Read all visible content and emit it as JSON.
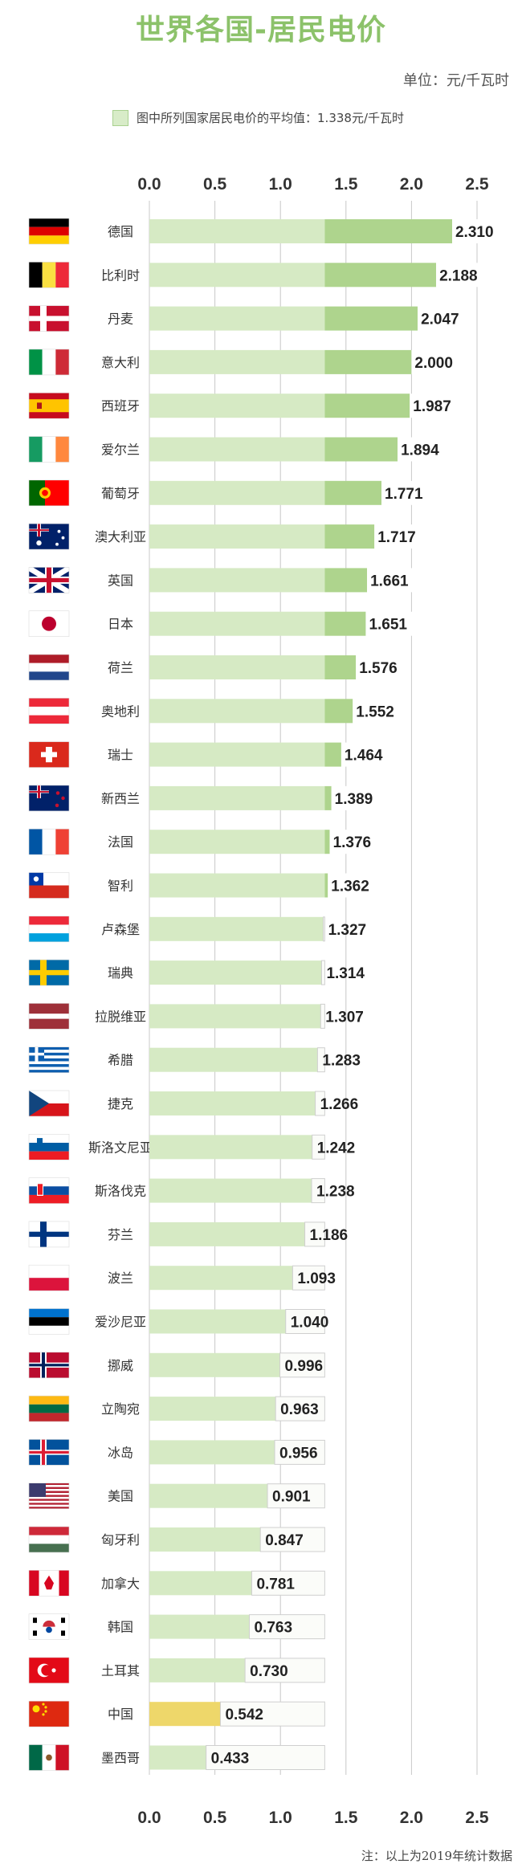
{
  "title": "世界各国-居民电价",
  "unit": "单位：元/千瓦时",
  "legend": "图中所列国家居民电价的平均值：1.338元/千瓦时",
  "note": "注：以上为2019年统计数据",
  "colors": {
    "title": "#8cc26a",
    "bar": "#aed48d",
    "bar_light": "#d6eac4",
    "highlight": "#eed76a",
    "grid": "#c8c8c8",
    "label_box_border": "#cfcfcf"
  },
  "chart_data": {
    "type": "bar",
    "orientation": "horizontal",
    "title": "世界各国-居民电价",
    "xlabel": "",
    "ylabel": "",
    "xlim": [
      0,
      2.5
    ],
    "ticks": [
      "0.0",
      "0.5",
      "1.0",
      "1.5",
      "2.0",
      "2.5"
    ],
    "average": 1.338,
    "grid": true,
    "highlight": "中国",
    "categories": [
      "德国",
      "比利时",
      "丹麦",
      "意大利",
      "西班牙",
      "爱尔兰",
      "葡萄牙",
      "澳大利亚",
      "英国",
      "日本",
      "荷兰",
      "奥地利",
      "瑞士",
      "新西兰",
      "法国",
      "智利",
      "卢森堡",
      "瑞典",
      "拉脱维亚",
      "希腊",
      "捷克",
      "斯洛文尼亚",
      "斯洛伐克",
      "芬兰",
      "波兰",
      "爱沙尼亚",
      "挪威",
      "立陶宛",
      "冰岛",
      "美国",
      "匈牙利",
      "加拿大",
      "韩国",
      "土耳其",
      "中国",
      "墨西哥"
    ],
    "values": [
      2.31,
      2.188,
      2.047,
      2.0,
      1.987,
      1.894,
      1.771,
      1.717,
      1.661,
      1.651,
      1.576,
      1.552,
      1.464,
      1.389,
      1.376,
      1.362,
      1.327,
      1.314,
      1.307,
      1.283,
      1.266,
      1.242,
      1.238,
      1.186,
      1.093,
      1.04,
      0.996,
      0.963,
      0.956,
      0.901,
      0.847,
      0.781,
      0.763,
      0.73,
      0.542,
      0.433
    ],
    "value_labels": [
      "2.310",
      "2.188",
      "2.047",
      "2.000",
      "1.987",
      "1.894",
      "1.771",
      "1.717",
      "1.661",
      "1.651",
      "1.576",
      "1.552",
      "1.464",
      "1.389",
      "1.376",
      "1.362",
      "1.327",
      "1.314",
      "1.307",
      "1.283",
      "1.266",
      "1.242",
      "1.238",
      "1.186",
      "1.093",
      "1.040",
      "0.996",
      "0.963",
      "0.956",
      "0.901",
      "0.847",
      "0.781",
      "0.763",
      "0.730",
      "0.542",
      "0.433"
    ],
    "flag_icons": [
      "germany-flag",
      "belgium-flag",
      "denmark-flag",
      "italy-flag",
      "spain-flag",
      "ireland-flag",
      "portugal-flag",
      "australia-flag",
      "uk-flag",
      "japan-flag",
      "netherlands-flag",
      "austria-flag",
      "switzerland-flag",
      "new-zealand-flag",
      "france-flag",
      "chile-flag",
      "luxembourg-flag",
      "sweden-flag",
      "latvia-flag",
      "greece-flag",
      "czech-flag",
      "slovenia-flag",
      "slovakia-flag",
      "finland-flag",
      "poland-flag",
      "estonia-flag",
      "norway-flag",
      "lithuania-flag",
      "iceland-flag",
      "usa-flag",
      "hungary-flag",
      "canada-flag",
      "korea-flag",
      "turkey-flag",
      "china-flag",
      "mexico-flag"
    ]
  }
}
